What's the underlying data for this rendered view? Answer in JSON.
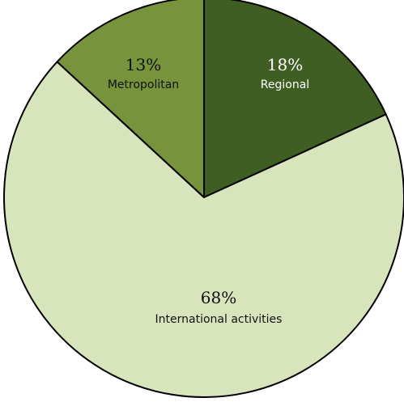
{
  "chart_data": {
    "type": "pie",
    "slices": [
      {
        "label": "Regional",
        "value": 18,
        "value_label": "18%",
        "color": "#3f5e22"
      },
      {
        "label": "International activities",
        "value": 68,
        "value_label": "68%",
        "color": "#d8e4bc"
      },
      {
        "label": "Metropolitan",
        "value": 13,
        "value_label": "13%",
        "color": "#77933c"
      }
    ],
    "start": "12 o'clock",
    "direction": "clockwise",
    "legend": "none",
    "title": ""
  }
}
